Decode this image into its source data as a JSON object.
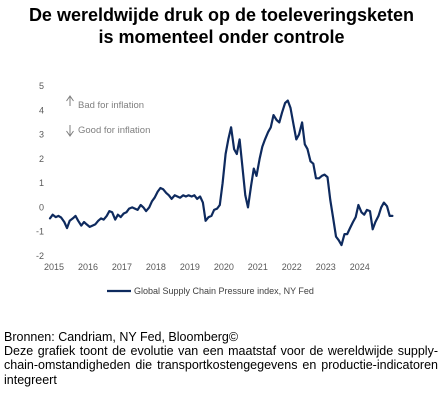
{
  "title": {
    "line1": "De wereldwijde druk op de toeleveringsketen",
    "line2": "is momenteel onder controle"
  },
  "footer": {
    "sources": "Bronnen: Candriam, NY Fed, Bloomberg©",
    "description": "Deze grafiek toont de evolutie van een maatstaf voor de wereldwijde supply-chain-omstandigheden die transportkostengegevens en productie-indicatoren integreert"
  },
  "chart_data": {
    "type": "line",
    "title": "",
    "xlabel": "",
    "ylabel": "",
    "xlim": [
      2015.0,
      2024.95
    ],
    "ylim": [
      -2,
      5
    ],
    "yticks": [
      -2,
      -1,
      0,
      1,
      2,
      3,
      4,
      5
    ],
    "xticks": [
      "2015",
      "2016",
      "2017",
      "2018",
      "2019",
      "2020",
      "2021",
      "2022",
      "2023",
      "2024"
    ],
    "grid": false,
    "legend_position": "bottom",
    "annotations": [
      {
        "text": "Bad for inflation",
        "arrow": "up"
      },
      {
        "text": "Good for inflation",
        "arrow": "down"
      }
    ],
    "series": [
      {
        "name": "Global Supply Chain Pressure index, NY Fed",
        "color": "#0e2a5e",
        "points": [
          [
            2015.0,
            -0.45
          ],
          [
            2015.08,
            -0.3
          ],
          [
            2015.17,
            -0.4
          ],
          [
            2015.25,
            -0.35
          ],
          [
            2015.33,
            -0.42
          ],
          [
            2015.42,
            -0.6
          ],
          [
            2015.5,
            -0.85
          ],
          [
            2015.58,
            -0.55
          ],
          [
            2015.67,
            -0.45
          ],
          [
            2015.75,
            -0.35
          ],
          [
            2015.83,
            -0.55
          ],
          [
            2015.92,
            -0.75
          ],
          [
            2016.0,
            -0.6
          ],
          [
            2016.08,
            -0.7
          ],
          [
            2016.17,
            -0.8
          ],
          [
            2016.25,
            -0.75
          ],
          [
            2016.33,
            -0.7
          ],
          [
            2016.42,
            -0.55
          ],
          [
            2016.5,
            -0.45
          ],
          [
            2016.58,
            -0.5
          ],
          [
            2016.67,
            -0.35
          ],
          [
            2016.75,
            -0.15
          ],
          [
            2016.83,
            -0.2
          ],
          [
            2016.92,
            -0.5
          ],
          [
            2017.0,
            -0.3
          ],
          [
            2017.08,
            -0.4
          ],
          [
            2017.17,
            -0.25
          ],
          [
            2017.25,
            -0.2
          ],
          [
            2017.33,
            -0.05
          ],
          [
            2017.42,
            0.0
          ],
          [
            2017.5,
            -0.05
          ],
          [
            2017.58,
            -0.1
          ],
          [
            2017.67,
            0.1
          ],
          [
            2017.75,
            0.0
          ],
          [
            2017.83,
            -0.15
          ],
          [
            2017.92,
            0.0
          ],
          [
            2018.0,
            0.25
          ],
          [
            2018.08,
            0.4
          ],
          [
            2018.17,
            0.65
          ],
          [
            2018.25,
            0.8
          ],
          [
            2018.33,
            0.75
          ],
          [
            2018.42,
            0.6
          ],
          [
            2018.5,
            0.5
          ],
          [
            2018.58,
            0.35
          ],
          [
            2018.67,
            0.5
          ],
          [
            2018.75,
            0.45
          ],
          [
            2018.83,
            0.4
          ],
          [
            2018.92,
            0.5
          ],
          [
            2019.0,
            0.45
          ],
          [
            2019.08,
            0.5
          ],
          [
            2019.17,
            0.45
          ],
          [
            2019.25,
            0.5
          ],
          [
            2019.33,
            0.35
          ],
          [
            2019.42,
            0.45
          ],
          [
            2019.5,
            0.2
          ],
          [
            2019.58,
            -0.55
          ],
          [
            2019.67,
            -0.4
          ],
          [
            2019.75,
            -0.35
          ],
          [
            2019.83,
            -0.1
          ],
          [
            2019.92,
            -0.05
          ],
          [
            2020.0,
            0.1
          ],
          [
            2020.08,
            1.0
          ],
          [
            2020.17,
            2.2
          ],
          [
            2020.25,
            2.8
          ],
          [
            2020.33,
            3.3
          ],
          [
            2020.42,
            2.4
          ],
          [
            2020.5,
            2.2
          ],
          [
            2020.58,
            2.8
          ],
          [
            2020.67,
            1.6
          ],
          [
            2020.75,
            0.5
          ],
          [
            2020.83,
            0.0
          ],
          [
            2020.92,
            0.9
          ],
          [
            2021.0,
            1.6
          ],
          [
            2021.08,
            1.3
          ],
          [
            2021.17,
            2.0
          ],
          [
            2021.25,
            2.5
          ],
          [
            2021.33,
            2.8
          ],
          [
            2021.42,
            3.1
          ],
          [
            2021.5,
            3.3
          ],
          [
            2021.58,
            3.8
          ],
          [
            2021.67,
            3.6
          ],
          [
            2021.75,
            3.5
          ],
          [
            2021.83,
            3.9
          ],
          [
            2021.92,
            4.3
          ],
          [
            2022.0,
            4.4
          ],
          [
            2022.08,
            4.1
          ],
          [
            2022.17,
            3.4
          ],
          [
            2022.25,
            2.8
          ],
          [
            2022.33,
            3.0
          ],
          [
            2022.42,
            3.5
          ],
          [
            2022.5,
            2.6
          ],
          [
            2022.58,
            2.4
          ],
          [
            2022.67,
            1.9
          ],
          [
            2022.75,
            1.8
          ],
          [
            2022.83,
            1.2
          ],
          [
            2022.92,
            1.2
          ],
          [
            2023.0,
            1.3
          ],
          [
            2023.08,
            1.35
          ],
          [
            2023.17,
            1.25
          ],
          [
            2023.25,
            0.3
          ],
          [
            2023.33,
            -0.4
          ],
          [
            2023.42,
            -1.2
          ],
          [
            2023.5,
            -1.35
          ],
          [
            2023.58,
            -1.55
          ],
          [
            2023.67,
            -1.1
          ],
          [
            2023.75,
            -1.1
          ],
          [
            2023.83,
            -0.85
          ],
          [
            2023.92,
            -0.6
          ],
          [
            2024.0,
            -0.4
          ],
          [
            2024.08,
            0.1
          ],
          [
            2024.17,
            -0.2
          ],
          [
            2024.25,
            -0.3
          ],
          [
            2024.33,
            -0.1
          ],
          [
            2024.42,
            -0.15
          ],
          [
            2024.5,
            -0.9
          ],
          [
            2024.58,
            -0.6
          ],
          [
            2024.67,
            -0.35
          ],
          [
            2024.75,
            0.0
          ],
          [
            2024.83,
            0.2
          ],
          [
            2024.92,
            0.05
          ],
          [
            2025.0,
            -0.35
          ],
          [
            2025.08,
            -0.35
          ]
        ]
      }
    ]
  }
}
